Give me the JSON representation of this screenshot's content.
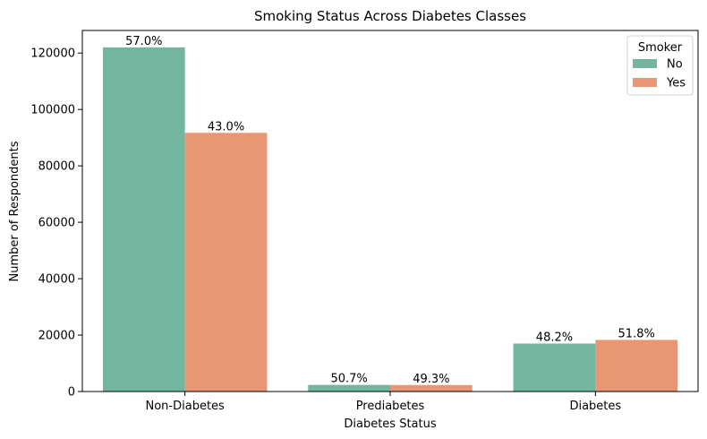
{
  "chart_data": {
    "type": "bar",
    "title": "Smoking Status Across Diabetes Classes",
    "xlabel": "Diabetes Status",
    "ylabel": "Number of Respondents",
    "categories": [
      "Non-Diabetes",
      "Prediabetes",
      "Diabetes"
    ],
    "series": [
      {
        "name": "No",
        "color": "#72b6a0",
        "values": [
          122000,
          2350,
          17000
        ],
        "labels": [
          "57.0%",
          "50.7%",
          "48.2%"
        ]
      },
      {
        "name": "Yes",
        "color": "#e89673",
        "values": [
          91700,
          2300,
          18300
        ],
        "labels": [
          "43.0%",
          "49.3%",
          "51.8%"
        ]
      }
    ],
    "ylim": [
      0,
      128000
    ],
    "yticks": [
      0,
      20000,
      40000,
      60000,
      80000,
      100000,
      120000
    ],
    "ytick_labels": [
      "0",
      "20000",
      "40000",
      "60000",
      "80000",
      "100000",
      "120000"
    ],
    "legend": {
      "title": "Smoker",
      "placement": "top-right"
    },
    "grid": false
  }
}
